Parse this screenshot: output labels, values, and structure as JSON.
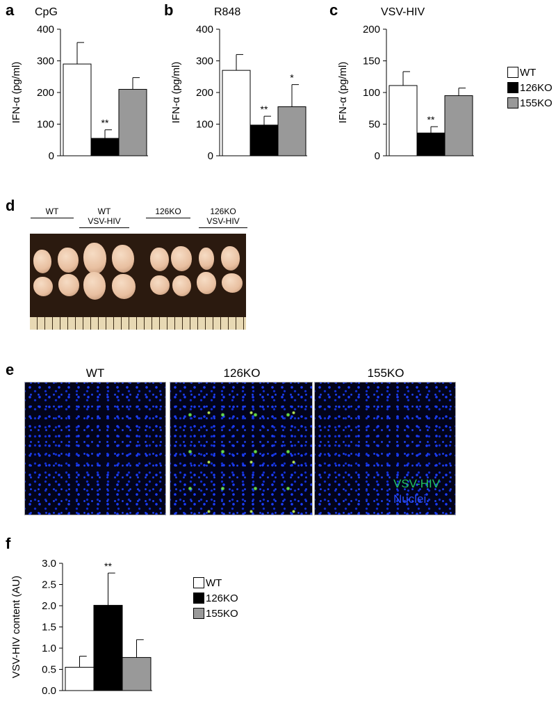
{
  "panels": {
    "a": "a",
    "b": "b",
    "c": "c",
    "d": "d",
    "e": "e",
    "f": "f"
  },
  "chart_data": [
    {
      "type": "bar",
      "title": "CpG",
      "ylabel": "IFN-α (pg/ml)",
      "ylim": [
        0,
        400
      ],
      "ticks": [
        0,
        100,
        200,
        300,
        400
      ],
      "categories": [
        "WT",
        "126KO",
        "155KO"
      ],
      "values": [
        290,
        55,
        210
      ],
      "errors": [
        68,
        27,
        37
      ],
      "significance": [
        "",
        "**",
        ""
      ]
    },
    {
      "type": "bar",
      "title": "R848",
      "ylabel": "IFN-α (pg/ml)",
      "ylim": [
        0,
        400
      ],
      "ticks": [
        0,
        100,
        200,
        300,
        400
      ],
      "categories": [
        "WT",
        "126KO",
        "155KO"
      ],
      "values": [
        270,
        97,
        155
      ],
      "errors": [
        50,
        28,
        70
      ],
      "significance": [
        "",
        "**",
        "*"
      ]
    },
    {
      "type": "bar",
      "title": "VSV-HIV",
      "ylabel": "IFN-α (pg/ml)",
      "ylim": [
        0,
        200
      ],
      "ticks": [
        0,
        50,
        100,
        150,
        200
      ],
      "categories": [
        "WT",
        "126KO",
        "155KO"
      ],
      "values": [
        111,
        36,
        95
      ],
      "errors": [
        22,
        10,
        12
      ],
      "significance": [
        "",
        "**",
        ""
      ]
    },
    {
      "type": "bar",
      "title": "",
      "ylabel": "VSV-HIV content (AU)",
      "ylim": [
        0,
        3.0
      ],
      "ticks": [
        "0.0",
        "0.5",
        "1.0",
        "1.5",
        "2.0",
        "2.5",
        "3.0"
      ],
      "categories": [
        "WT",
        "126KO",
        "155KO"
      ],
      "values": [
        0.55,
        2.01,
        0.78
      ],
      "errors": [
        0.26,
        0.76,
        0.42
      ],
      "significance": [
        "",
        "**",
        ""
      ]
    }
  ],
  "legend_top": [
    {
      "label": "WT",
      "color": "#ffffff"
    },
    {
      "label": "126KO",
      "color": "#000000"
    },
    {
      "label": "155KO",
      "color": "#999999"
    }
  ],
  "legend_bottom": [
    {
      "label": "WT",
      "color": "#ffffff"
    },
    {
      "label": "126KO",
      "color": "#000000"
    },
    {
      "label": "155KO",
      "color": "#999999"
    }
  ],
  "panel_d": {
    "groups": [
      {
        "line1": "",
        "line2": "WT"
      },
      {
        "line1": "WT",
        "line2": "VSV-HIV"
      },
      {
        "line1": "",
        "line2": "126KO"
      },
      {
        "line1": "126KO",
        "line2": "VSV-HIV"
      }
    ]
  },
  "panel_e": {
    "labels": [
      "WT",
      "126KO",
      "155KO"
    ],
    "overlay_virus": "VSV-HIV",
    "overlay_nuclei": "Nuclei",
    "virus_color": "#22c55e",
    "nuclei_color": "#2b4cff"
  }
}
